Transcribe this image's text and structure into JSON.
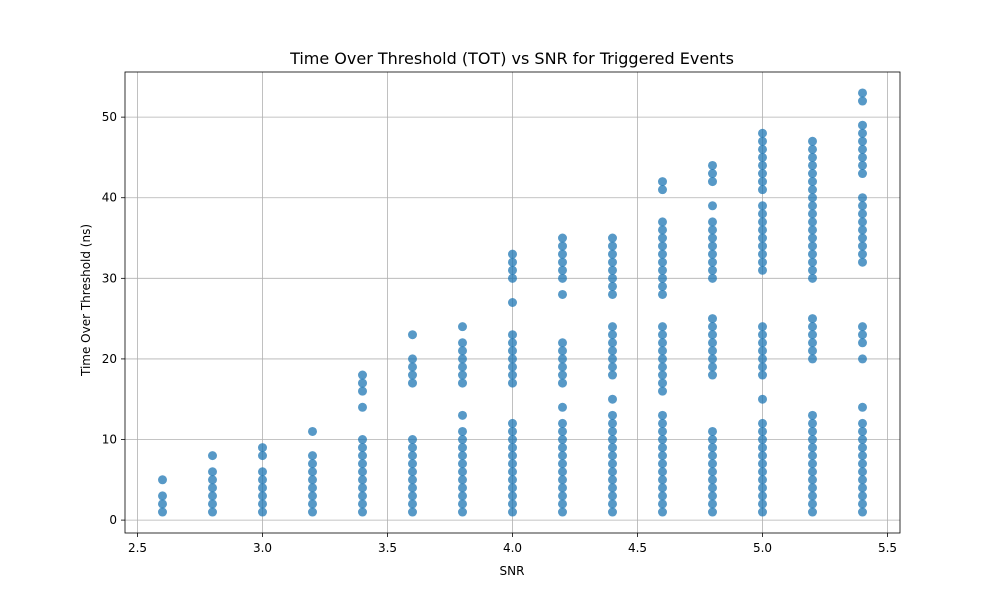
{
  "chart_data": {
    "type": "scatter",
    "title": "Time Over Threshold (TOT) vs SNR for Triggered Events",
    "xlabel": "SNR",
    "ylabel": "Time Over Threshold (ns)",
    "xlim": [
      2.45,
      5.55
    ],
    "ylim": [
      -1.6,
      55.6
    ],
    "xticks": [
      "2.5",
      "3.0",
      "3.5",
      "4.0",
      "4.5",
      "5.0",
      "5.5"
    ],
    "yticks": [
      "0",
      "10",
      "20",
      "30",
      "40",
      "50"
    ],
    "grid": true,
    "marker_color": "#1f77b4",
    "marker_alpha": 0.75,
    "columns": [
      {
        "x": 2.6,
        "y": [
          1,
          2,
          3,
          5
        ]
      },
      {
        "x": 2.8,
        "y": [
          1,
          2,
          3,
          4,
          5,
          6,
          8
        ]
      },
      {
        "x": 3.0,
        "y": [
          1,
          2,
          3,
          4,
          5,
          6,
          8,
          9
        ]
      },
      {
        "x": 3.2,
        "y": [
          1,
          2,
          3,
          4,
          5,
          6,
          7,
          8,
          11
        ]
      },
      {
        "x": 3.4,
        "y": [
          1,
          2,
          3,
          4,
          5,
          6,
          7,
          8,
          9,
          10,
          14,
          16,
          17,
          18
        ]
      },
      {
        "x": 3.6,
        "y": [
          1,
          2,
          3,
          4,
          5,
          6,
          7,
          8,
          9,
          10,
          17,
          18,
          19,
          20,
          23
        ]
      },
      {
        "x": 3.8,
        "y": [
          1,
          2,
          3,
          4,
          5,
          6,
          7,
          8,
          9,
          10,
          11,
          13,
          17,
          18,
          19,
          20,
          21,
          22,
          24
        ]
      },
      {
        "x": 4.0,
        "y": [
          1,
          2,
          3,
          4,
          5,
          6,
          7,
          8,
          9,
          10,
          11,
          12,
          17,
          18,
          19,
          20,
          21,
          22,
          23,
          27,
          30,
          31,
          32,
          33
        ]
      },
      {
        "x": 4.2,
        "y": [
          1,
          2,
          3,
          4,
          5,
          6,
          7,
          8,
          9,
          10,
          11,
          12,
          14,
          17,
          18,
          19,
          20,
          21,
          22,
          28,
          30,
          31,
          32,
          33,
          34,
          35
        ]
      },
      {
        "x": 4.4,
        "y": [
          1,
          2,
          3,
          4,
          5,
          6,
          7,
          8,
          9,
          10,
          11,
          12,
          13,
          15,
          18,
          19,
          20,
          21,
          22,
          23,
          24,
          28,
          29,
          30,
          31,
          32,
          33,
          34,
          35
        ]
      },
      {
        "x": 4.6,
        "y": [
          1,
          2,
          3,
          4,
          5,
          6,
          7,
          8,
          9,
          10,
          11,
          12,
          13,
          16,
          17,
          18,
          19,
          20,
          21,
          22,
          23,
          24,
          28,
          29,
          30,
          31,
          32,
          33,
          34,
          35,
          36,
          37,
          41,
          42
        ]
      },
      {
        "x": 4.8,
        "y": [
          1,
          2,
          3,
          4,
          5,
          6,
          7,
          8,
          9,
          10,
          11,
          18,
          19,
          20,
          21,
          22,
          23,
          24,
          25,
          30,
          31,
          32,
          33,
          34,
          35,
          36,
          37,
          39,
          42,
          43,
          44
        ]
      },
      {
        "x": 5.0,
        "y": [
          1,
          2,
          3,
          4,
          5,
          6,
          7,
          8,
          9,
          10,
          11,
          12,
          15,
          18,
          19,
          20,
          21,
          22,
          23,
          24,
          31,
          32,
          33,
          34,
          35,
          36,
          37,
          38,
          39,
          41,
          42,
          43,
          44,
          45,
          46,
          47,
          48
        ]
      },
      {
        "x": 5.2,
        "y": [
          1,
          2,
          3,
          4,
          5,
          6,
          7,
          8,
          9,
          10,
          11,
          12,
          13,
          20,
          21,
          22,
          23,
          24,
          25,
          30,
          31,
          32,
          33,
          34,
          35,
          36,
          37,
          38,
          39,
          40,
          41,
          42,
          43,
          44,
          45,
          46,
          47
        ]
      },
      {
        "x": 5.4,
        "y": [
          1,
          2,
          3,
          4,
          5,
          6,
          7,
          8,
          9,
          10,
          11,
          12,
          14,
          20,
          22,
          23,
          24,
          32,
          33,
          34,
          35,
          36,
          37,
          38,
          39,
          40,
          43,
          44,
          45,
          46,
          47,
          48,
          49,
          52,
          53
        ]
      }
    ]
  }
}
